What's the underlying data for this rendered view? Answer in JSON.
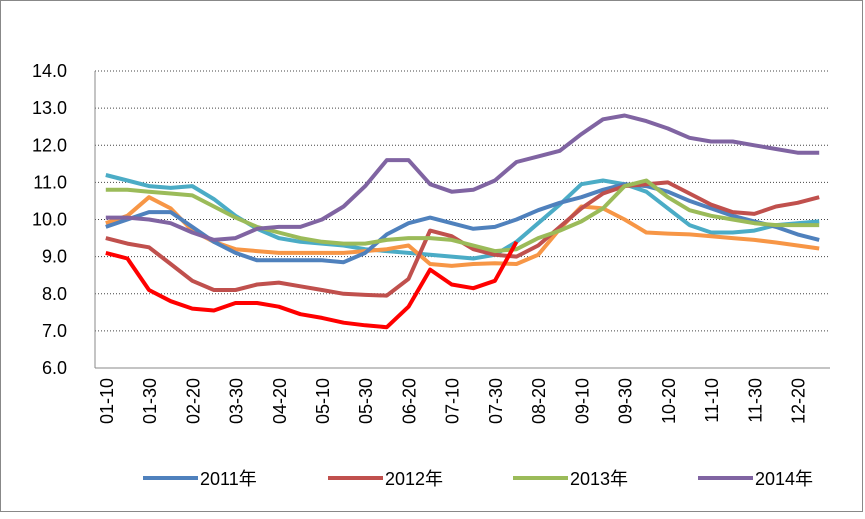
{
  "chart_data": {
    "type": "line",
    "categories": [
      "01-10",
      null,
      "01-30",
      null,
      "02-20",
      null,
      "03-30",
      null,
      "04-20",
      null,
      "05-10",
      null,
      "05-30",
      null,
      "06-20",
      null,
      "07-10",
      null,
      "07-30",
      null,
      "08-20",
      null,
      "09-10",
      null,
      "09-30",
      null,
      "10-20",
      null,
      "11-10",
      null,
      "11-30",
      null,
      "12-20",
      null
    ],
    "ylim": [
      6,
      14
    ],
    "yticks": [
      {
        "value": 6,
        "label": "6.0"
      },
      {
        "value": 7,
        "label": "7.0"
      },
      {
        "value": 8,
        "label": "8.0"
      },
      {
        "value": 9,
        "label": "9.0"
      },
      {
        "value": 10,
        "label": "10.0"
      },
      {
        "value": 11,
        "label": "11.0"
      },
      {
        "value": 12,
        "label": "12.0"
      },
      {
        "value": 13,
        "label": "13.0"
      },
      {
        "value": 14,
        "label": "14.0"
      }
    ],
    "grid": true,
    "legend": "bottom",
    "series": [
      {
        "color": "#4bacc6",
        "values": [
          11.2,
          11.05,
          10.9,
          10.85,
          10.9,
          10.55,
          10.1,
          9.75,
          9.5,
          9.4,
          9.35,
          9.3,
          9.2,
          9.15,
          9.1,
          9.05,
          9.0,
          8.95,
          9.05,
          9.4,
          9.9,
          10.4,
          10.95,
          11.05,
          10.95,
          10.75,
          10.3,
          9.85,
          9.65,
          9.65,
          9.7,
          9.85,
          9.9,
          9.95
        ]
      },
      {
        "color": "#f79646",
        "values": [
          9.9,
          10.1,
          10.6,
          10.3,
          9.7,
          9.4,
          9.2,
          9.15,
          9.1,
          9.1,
          9.1,
          9.1,
          9.15,
          9.2,
          9.3,
          8.8,
          8.75,
          8.8,
          8.82,
          8.8,
          9.05,
          9.75,
          10.35,
          10.3,
          10.0,
          9.65,
          9.62,
          9.6,
          9.55,
          9.5,
          9.45,
          9.38,
          9.3,
          9.22
        ]
      },
      {
        "name": "2011年",
        "color": "#4f81bd",
        "values": [
          9.8,
          10.0,
          10.2,
          10.2,
          9.8,
          9.4,
          9.1,
          8.9,
          8.9,
          8.9,
          8.9,
          8.85,
          9.1,
          9.6,
          9.9,
          10.05,
          9.9,
          9.75,
          9.8,
          10.0,
          10.25,
          10.45,
          10.6,
          10.8,
          10.95,
          10.9,
          10.75,
          10.5,
          10.3,
          10.1,
          9.95,
          9.8,
          9.6,
          9.45
        ]
      },
      {
        "name": "2012年",
        "color": "#c0504d",
        "values": [
          9.5,
          9.35,
          9.25,
          8.8,
          8.35,
          8.1,
          8.1,
          8.25,
          8.3,
          8.2,
          8.1,
          8.0,
          7.97,
          7.95,
          8.4,
          9.7,
          9.55,
          9.2,
          9.05,
          9.0,
          9.3,
          9.8,
          10.3,
          10.7,
          10.9,
          10.95,
          11.0,
          10.7,
          10.4,
          10.2,
          10.15,
          10.35,
          10.45,
          10.6
        ]
      },
      {
        "name": "2013年",
        "color": "#9bbb59",
        "values": [
          10.8,
          10.8,
          10.75,
          10.7,
          10.65,
          10.35,
          10.05,
          9.8,
          9.65,
          9.5,
          9.4,
          9.35,
          9.35,
          9.45,
          9.5,
          9.5,
          9.45,
          9.3,
          9.15,
          9.2,
          9.5,
          9.7,
          9.95,
          10.3,
          10.9,
          11.05,
          10.6,
          10.25,
          10.1,
          10.0,
          9.9,
          9.85,
          9.85,
          9.85
        ]
      },
      {
        "name": "2014年",
        "color": "#8064a2",
        "values": [
          10.05,
          10.05,
          10.0,
          9.9,
          9.65,
          9.45,
          9.5,
          9.75,
          9.8,
          9.8,
          10.0,
          10.35,
          10.9,
          11.6,
          11.6,
          10.95,
          10.75,
          10.8,
          11.05,
          11.55,
          11.7,
          11.85,
          12.3,
          12.7,
          12.8,
          12.65,
          12.45,
          12.2,
          12.1,
          12.1,
          12.0,
          11.9,
          11.8,
          11.8
        ]
      },
      {
        "color": "#ff0000",
        "values": [
          9.1,
          8.95,
          8.1,
          7.8,
          7.6,
          7.55,
          7.75,
          7.75,
          7.65,
          7.45,
          7.35,
          7.22,
          7.15,
          7.1,
          7.65,
          8.65,
          8.25,
          8.15,
          8.35,
          9.4,
          null,
          null,
          null,
          null,
          null,
          null,
          null,
          null,
          null,
          null,
          null,
          null,
          null,
          null
        ]
      }
    ]
  }
}
